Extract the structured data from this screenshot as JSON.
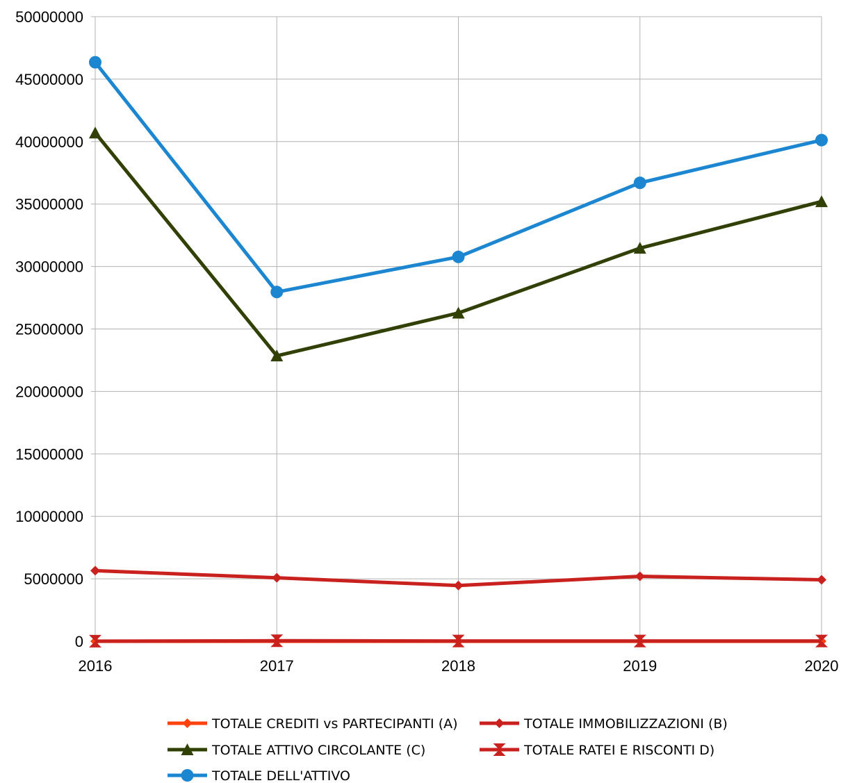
{
  "chart_data": {
    "type": "line",
    "title": "",
    "xlabel": "",
    "ylabel": "",
    "categories": [
      "2016",
      "2017",
      "2018",
      "2019",
      "2020"
    ],
    "ylim": [
      0,
      50000000
    ],
    "yticks": [
      0,
      5000000,
      10000000,
      15000000,
      20000000,
      25000000,
      30000000,
      35000000,
      40000000,
      45000000,
      50000000
    ],
    "ytick_labels": [
      "0",
      "5000000",
      "10000000",
      "15000000",
      "20000000",
      "25000000",
      "30000000",
      "35000000",
      "40000000",
      "45000000",
      "50000000"
    ],
    "grid": true,
    "legend_position": "bottom",
    "series": [
      {
        "name": "TOTALE CREDITI vs PARTECIPANTI (A)",
        "color": "#ff420e",
        "marker": "diamond",
        "values": [
          0,
          0,
          0,
          0,
          0
        ]
      },
      {
        "name": "TOTALE IMMOBILIZZAZIONI (B)",
        "color": "#c9211e",
        "marker": "diamond",
        "values": [
          5650000,
          5080000,
          4460000,
          5200000,
          4920000
        ]
      },
      {
        "name": "TOTALE ATTIVO CIRCOLANTE (C)",
        "color": "#314004",
        "marker": "triangle",
        "values": [
          40700000,
          22850000,
          26280000,
          31470000,
          35200000
        ]
      },
      {
        "name": "TOTALE RATEI E RISCONTI  D)",
        "color": "#c9211e",
        "marker": "hourglass",
        "values": [
          10000,
          40000,
          20000,
          20000,
          20000
        ]
      },
      {
        "name": "TOTALE DELL'ATTIVO",
        "color": "#1c86d1",
        "marker": "circle",
        "values": [
          46350000,
          27960000,
          30770000,
          36700000,
          40120000
        ]
      }
    ]
  }
}
